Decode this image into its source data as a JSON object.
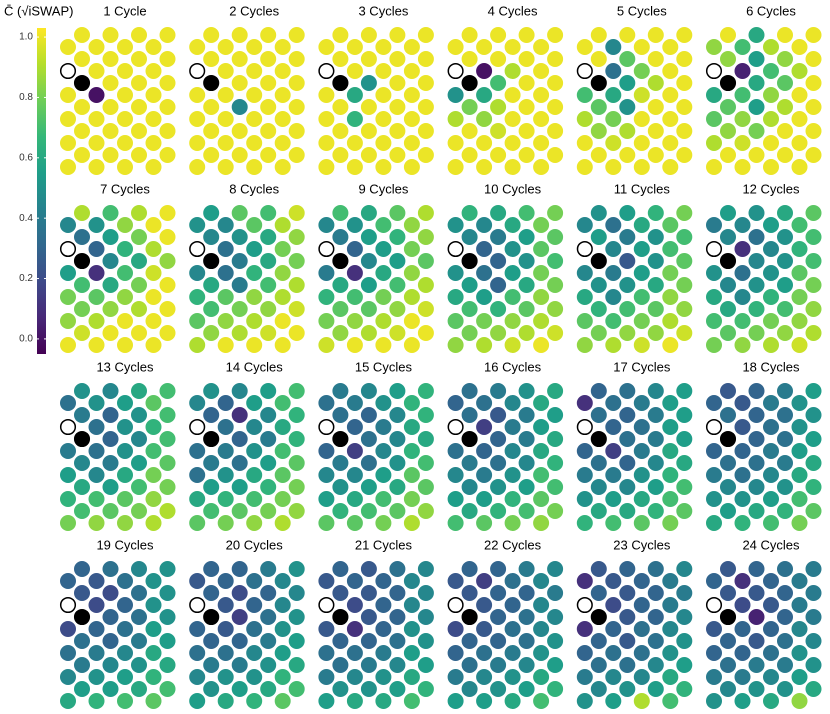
{
  "chart_data": {
    "type": "lattice",
    "colorbar": {
      "title": "C̄ (√iSWAP)",
      "lim": [
        -0.05,
        1.03
      ],
      "ticks": [
        {
          "value": 0,
          "label": "0.0"
        },
        0.2,
        0.4,
        0.6,
        0.8,
        {
          "value": 1,
          "label": "1.0"
        }
      ],
      "colormap": [
        "#440154",
        "#482878",
        "#3e4a89",
        "#31688e",
        "#26828e",
        "#1f9e89",
        "#35b779",
        "#6ece58",
        "#b5de2b",
        "#fde725"
      ]
    },
    "panels": [
      {
        "title": "1 Cycle",
        "values": [
          1,
          1,
          1,
          1,
          1,
          1,
          1,
          1,
          1,
          1,
          1,
          1,
          null,
          1,
          1,
          1,
          null,
          1,
          1,
          1,
          1,
          0,
          1,
          1,
          1,
          1,
          1,
          1,
          1,
          1,
          1,
          1,
          1,
          1,
          1,
          1,
          1,
          1,
          1,
          1,
          1,
          1,
          1,
          1,
          1,
          1,
          1,
          1
        ]
      },
      {
        "title": "2 Cycles",
        "values": [
          1,
          1,
          1,
          1,
          1,
          1,
          1,
          1,
          1,
          1,
          1,
          1,
          null,
          1,
          1,
          1,
          null,
          1,
          1,
          1,
          1,
          1,
          1,
          1,
          1,
          0.45,
          1,
          1,
          1,
          1,
          1,
          1,
          1,
          1,
          1,
          1,
          1,
          1,
          1,
          1,
          1,
          1,
          1,
          1,
          1,
          1,
          1,
          1
        ]
      },
      {
        "title": "3 Cycles",
        "values": [
          1,
          1,
          1,
          1,
          1,
          1,
          1,
          1,
          1,
          1,
          1,
          1,
          null,
          1,
          1,
          1,
          null,
          0.5,
          1,
          1,
          1,
          0.6,
          1,
          1,
          1,
          1,
          1,
          1,
          1,
          0.65,
          1,
          1,
          1,
          1,
          1,
          1,
          1,
          1,
          1,
          1,
          1,
          1,
          1,
          1,
          1,
          1,
          1,
          1
        ]
      },
      {
        "title": "4 Cycles",
        "values": [
          1,
          1,
          1,
          1,
          1,
          1,
          1,
          1,
          1,
          1,
          1,
          1,
          null,
          0,
          0.9,
          1,
          null,
          0.7,
          1,
          1,
          0.5,
          0.6,
          1,
          1,
          0.8,
          0.9,
          1,
          1,
          0.9,
          0.85,
          1,
          1,
          1,
          0.95,
          1,
          1,
          1,
          1,
          1,
          1,
          1,
          1,
          1,
          1,
          1,
          1,
          1,
          1
        ]
      },
      {
        "title": "5 Cycles",
        "values": [
          1,
          1,
          1,
          1,
          1,
          0.45,
          1,
          1,
          1,
          0.75,
          1,
          1,
          null,
          0.35,
          0.8,
          1,
          null,
          0.55,
          0.9,
          1,
          0.7,
          0.6,
          0.95,
          1,
          0.75,
          0.5,
          1,
          1,
          0.9,
          0.8,
          1,
          1,
          0.85,
          0.9,
          1,
          1,
          1,
          0.95,
          1,
          1,
          1,
          1,
          1,
          1,
          1,
          1,
          1,
          1
        ]
      },
      {
        "title": "6 Cycles",
        "values": [
          1,
          0.6,
          1,
          1,
          0.85,
          0.7,
          0.9,
          1,
          0.85,
          0.55,
          0.85,
          1,
          null,
          0.05,
          0.7,
          0.9,
          null,
          0.6,
          0.75,
          1,
          0.6,
          0.7,
          0.85,
          1,
          0.75,
          0.55,
          0.9,
          1,
          0.75,
          0.85,
          0.9,
          1,
          0.85,
          0.8,
          1,
          1,
          0.9,
          0.95,
          1,
          1,
          1,
          1,
          1,
          1,
          1,
          1,
          1,
          1
        ]
      },
      {
        "title": "7 Cycles",
        "values": [
          0.9,
          0.7,
          0.9,
          1,
          0.45,
          0.5,
          0.85,
          1,
          0.35,
          0.55,
          0.8,
          1,
          null,
          0.3,
          0.65,
          0.9,
          null,
          0.45,
          0.6,
          0.85,
          0.55,
          0.1,
          0.7,
          0.95,
          0.7,
          0.6,
          0.8,
          1,
          0.8,
          0.75,
          0.85,
          1,
          0.8,
          0.85,
          0.9,
          1,
          0.85,
          0.9,
          1,
          1,
          0.95,
          1,
          1,
          1,
          1,
          1,
          1,
          1
        ]
      },
      {
        "title": "8 Cycles",
        "values": [
          0.55,
          0.75,
          0.7,
          0.95,
          0.5,
          0.45,
          0.75,
          0.9,
          0.45,
          0.5,
          0.6,
          0.85,
          null,
          0.35,
          0.55,
          0.8,
          null,
          0.4,
          0.6,
          0.8,
          0.45,
          0.35,
          0.65,
          0.85,
          0.6,
          0.4,
          0.7,
          0.9,
          0.65,
          0.75,
          0.85,
          0.9,
          0.7,
          0.8,
          0.85,
          0.95,
          0.75,
          0.85,
          0.9,
          1,
          0.85,
          0.9,
          0.95,
          1,
          0.9,
          1,
          1,
          1
        ]
      },
      {
        "title": "9 Cycles",
        "values": [
          0.7,
          0.6,
          0.75,
          0.9,
          0.45,
          0.5,
          0.7,
          0.85,
          0.4,
          0.55,
          0.65,
          0.85,
          null,
          0.3,
          0.55,
          0.8,
          null,
          0.45,
          0.55,
          0.75,
          0.4,
          0.1,
          0.6,
          0.85,
          0.6,
          0.55,
          0.7,
          0.9,
          0.65,
          0.7,
          0.8,
          0.9,
          0.75,
          0.75,
          0.85,
          0.95,
          0.8,
          0.85,
          0.9,
          1,
          0.85,
          0.9,
          0.95,
          1,
          0.95,
          1,
          1,
          1
        ]
      },
      {
        "title": "10 Cycles",
        "values": [
          0.65,
          0.6,
          0.7,
          0.8,
          0.5,
          0.45,
          0.6,
          0.8,
          0.45,
          0.4,
          0.55,
          0.75,
          null,
          0.3,
          0.5,
          0.75,
          null,
          0.3,
          0.5,
          0.7,
          0.5,
          0.35,
          0.55,
          0.8,
          0.55,
          0.3,
          0.6,
          0.8,
          0.6,
          0.55,
          0.7,
          0.85,
          0.7,
          0.65,
          0.75,
          0.85,
          0.75,
          0.8,
          0.85,
          0.9,
          0.8,
          0.85,
          0.9,
          0.95,
          0.85,
          0.9,
          0.95,
          1
        ]
      },
      {
        "title": "11 Cycles",
        "values": [
          0.5,
          0.55,
          0.65,
          0.8,
          0.45,
          0.35,
          0.6,
          0.75,
          0.55,
          0.4,
          0.5,
          0.7,
          null,
          0.45,
          0.55,
          0.7,
          null,
          0.25,
          0.5,
          0.75,
          0.45,
          0.4,
          0.55,
          0.8,
          0.5,
          0.5,
          0.6,
          0.8,
          0.6,
          0.45,
          0.7,
          0.85,
          0.65,
          0.7,
          0.75,
          0.85,
          0.75,
          0.7,
          0.8,
          0.9,
          0.8,
          0.85,
          0.85,
          0.95,
          0.85,
          0.9,
          0.95,
          1
        ]
      },
      {
        "title": "12 Cycles",
        "values": [
          0.55,
          0.5,
          0.6,
          0.75,
          0.4,
          0.45,
          0.55,
          0.7,
          0.45,
          0.35,
          0.5,
          0.7,
          null,
          0.1,
          0.45,
          0.65,
          null,
          0.45,
          0.5,
          0.7,
          0.5,
          0.35,
          0.5,
          0.75,
          0.45,
          0.5,
          0.55,
          0.8,
          0.6,
          0.45,
          0.65,
          0.8,
          0.6,
          0.65,
          0.7,
          0.85,
          0.7,
          0.7,
          0.8,
          0.85,
          0.75,
          0.8,
          0.85,
          0.9,
          0.8,
          0.85,
          0.9,
          0.95
        ]
      },
      {
        "title": "13 Cycles",
        "values": [
          0.5,
          0.45,
          0.6,
          0.7,
          0.35,
          0.5,
          0.55,
          0.75,
          0.4,
          0.3,
          0.5,
          0.7,
          null,
          0.35,
          0.5,
          0.65,
          null,
          0.3,
          0.45,
          0.7,
          0.4,
          0.35,
          0.5,
          0.7,
          0.45,
          0.4,
          0.55,
          0.75,
          0.55,
          0.45,
          0.6,
          0.8,
          0.6,
          0.55,
          0.7,
          0.8,
          0.65,
          0.7,
          0.75,
          0.85,
          0.7,
          0.75,
          0.8,
          0.9,
          0.8,
          0.85,
          0.85,
          0.9
        ]
      },
      {
        "title": "14 Cycles",
        "values": [
          0.5,
          0.45,
          0.55,
          0.7,
          0.45,
          0.3,
          0.55,
          0.7,
          0.3,
          0.1,
          0.45,
          0.65,
          null,
          0.35,
          0.45,
          0.6,
          null,
          0.3,
          0.4,
          0.65,
          0.35,
          0.4,
          0.5,
          0.7,
          0.4,
          0.35,
          0.55,
          0.75,
          0.35,
          0.5,
          0.6,
          0.75,
          0.55,
          0.55,
          0.65,
          0.8,
          0.6,
          0.65,
          0.7,
          0.8,
          0.7,
          0.75,
          0.8,
          0.85,
          0.75,
          0.8,
          0.85,
          0.9
        ]
      },
      {
        "title": "15 Cycles",
        "values": [
          0.4,
          0.45,
          0.55,
          0.65,
          0.35,
          0.4,
          0.5,
          0.65,
          0.35,
          0.3,
          0.45,
          0.65,
          null,
          0.3,
          0.4,
          0.6,
          null,
          0.35,
          0.45,
          0.6,
          0.3,
          0.15,
          0.45,
          0.65,
          0.4,
          0.35,
          0.5,
          0.7,
          0.45,
          0.45,
          0.55,
          0.75,
          0.5,
          0.55,
          0.6,
          0.75,
          0.55,
          0.6,
          0.7,
          0.8,
          0.65,
          0.7,
          0.75,
          0.85,
          0.75,
          0.75,
          0.8,
          0.9
        ]
      },
      {
        "title": "16 Cycles",
        "values": [
          0.35,
          0.4,
          0.5,
          0.6,
          0.3,
          0.35,
          0.45,
          0.6,
          0.35,
          0.25,
          0.4,
          0.55,
          null,
          0.15,
          0.4,
          0.55,
          null,
          0.3,
          0.4,
          0.6,
          0.35,
          0.3,
          0.45,
          0.6,
          0.4,
          0.35,
          0.45,
          0.65,
          0.45,
          0.4,
          0.5,
          0.7,
          0.45,
          0.5,
          0.55,
          0.7,
          0.55,
          0.55,
          0.65,
          0.75,
          0.6,
          0.65,
          0.7,
          0.8,
          0.7,
          0.75,
          0.8,
          0.85
        ]
      },
      {
        "title": "17 Cycles",
        "values": [
          0.3,
          0.35,
          0.45,
          0.55,
          0.1,
          0.35,
          0.4,
          0.55,
          0.35,
          0.3,
          0.4,
          0.55,
          null,
          0.3,
          0.35,
          0.55,
          null,
          0.35,
          0.4,
          0.55,
          0.3,
          0.15,
          0.4,
          0.6,
          0.35,
          0.3,
          0.45,
          0.6,
          0.4,
          0.4,
          0.5,
          0.65,
          0.45,
          0.45,
          0.55,
          0.7,
          0.5,
          0.55,
          0.6,
          0.7,
          0.6,
          0.6,
          0.65,
          0.75,
          0.65,
          0.7,
          0.75,
          0.8
        ]
      },
      {
        "title": "18 Cycles",
        "values": [
          0.25,
          0.3,
          0.4,
          0.55,
          0.3,
          0.25,
          0.4,
          0.5,
          0.35,
          0.3,
          0.35,
          0.5,
          null,
          0.25,
          0.35,
          0.5,
          null,
          0.3,
          0.35,
          0.55,
          0.3,
          0.3,
          0.4,
          0.55,
          0.35,
          0.35,
          0.4,
          0.6,
          0.4,
          0.35,
          0.45,
          0.6,
          0.45,
          0.45,
          0.5,
          0.65,
          0.5,
          0.5,
          0.55,
          0.7,
          0.55,
          0.6,
          0.65,
          0.75,
          0.6,
          0.65,
          0.7,
          0.8
        ]
      },
      {
        "title": "19 Cycles",
        "values": [
          0.3,
          0.35,
          0.45,
          0.5,
          0.3,
          0.25,
          0.35,
          0.5,
          0.25,
          0.2,
          0.35,
          0.5,
          null,
          0.2,
          0.3,
          0.5,
          null,
          0.3,
          0.35,
          0.5,
          0.2,
          0.3,
          0.35,
          0.55,
          0.35,
          0.3,
          0.4,
          0.55,
          0.35,
          0.4,
          0.45,
          0.6,
          0.4,
          0.45,
          0.5,
          0.6,
          0.45,
          0.5,
          0.55,
          0.65,
          0.55,
          0.55,
          0.6,
          0.7,
          0.6,
          0.65,
          0.7,
          0.75
        ]
      },
      {
        "title": "20 Cycles",
        "values": [
          0.3,
          0.3,
          0.4,
          0.5,
          0.25,
          0.3,
          0.35,
          0.45,
          0.3,
          0.2,
          0.3,
          0.45,
          null,
          0.25,
          0.3,
          0.45,
          null,
          0.15,
          0.35,
          0.5,
          0.3,
          0.25,
          0.35,
          0.5,
          0.3,
          0.3,
          0.4,
          0.55,
          0.35,
          0.35,
          0.45,
          0.55,
          0.4,
          0.4,
          0.5,
          0.6,
          0.45,
          0.5,
          0.5,
          0.65,
          0.5,
          0.55,
          0.6,
          0.7,
          0.55,
          0.6,
          0.65,
          0.75
        ]
      },
      {
        "title": "21 Cycles",
        "values": [
          0.3,
          0.25,
          0.35,
          0.45,
          0.25,
          0.3,
          0.3,
          0.45,
          0.25,
          0.25,
          0.3,
          0.45,
          null,
          0.2,
          0.3,
          0.45,
          null,
          0.25,
          0.3,
          0.45,
          0.25,
          0.1,
          0.3,
          0.5,
          0.3,
          0.3,
          0.35,
          0.5,
          0.35,
          0.35,
          0.4,
          0.55,
          0.35,
          0.4,
          0.45,
          0.55,
          0.4,
          0.45,
          0.5,
          0.6,
          0.5,
          0.5,
          0.55,
          0.65,
          0.55,
          0.6,
          0.6,
          0.7
        ]
      },
      {
        "title": "22 Cycles",
        "values": [
          0.3,
          0.3,
          0.4,
          0.45,
          0.25,
          0.15,
          0.35,
          0.45,
          0.25,
          0.3,
          0.3,
          0.4,
          null,
          0.25,
          0.3,
          0.45,
          null,
          0.3,
          0.35,
          0.45,
          0.2,
          0.25,
          0.35,
          0.45,
          0.3,
          0.3,
          0.35,
          0.5,
          0.3,
          0.35,
          0.4,
          0.5,
          0.35,
          0.4,
          0.45,
          0.55,
          0.4,
          0.45,
          0.5,
          0.6,
          0.45,
          0.5,
          0.55,
          0.65,
          0.55,
          0.55,
          0.6,
          0.7
        ]
      },
      {
        "title": "23 Cycles",
        "values": [
          0.25,
          0.3,
          0.35,
          0.45,
          0.1,
          0.25,
          0.3,
          0.4,
          0.3,
          0.25,
          0.3,
          0.4,
          null,
          0.2,
          0.3,
          0.4,
          null,
          0.25,
          0.3,
          0.45,
          0.1,
          0.3,
          0.35,
          0.45,
          0.3,
          0.25,
          0.35,
          0.5,
          0.3,
          0.35,
          0.35,
          0.5,
          0.35,
          0.35,
          0.45,
          0.55,
          0.4,
          0.45,
          0.45,
          0.6,
          0.45,
          0.5,
          0.55,
          0.65,
          0.5,
          0.55,
          0.9,
          0.7
        ]
      },
      {
        "title": "24 Cycles",
        "values": [
          0.25,
          0.3,
          0.35,
          0.4,
          0.3,
          0.1,
          0.3,
          0.4,
          0.25,
          0.25,
          0.3,
          0.4,
          null,
          0.2,
          0.25,
          0.4,
          null,
          0.05,
          0.3,
          0.4,
          0.25,
          0.3,
          0.3,
          0.45,
          0.3,
          0.25,
          0.35,
          0.45,
          0.3,
          0.3,
          0.35,
          0.5,
          0.35,
          0.4,
          0.4,
          0.5,
          0.4,
          0.4,
          0.45,
          0.55,
          0.45,
          0.5,
          0.5,
          0.6,
          0.5,
          0.55,
          0.6,
          0.85
        ]
      }
    ]
  }
}
